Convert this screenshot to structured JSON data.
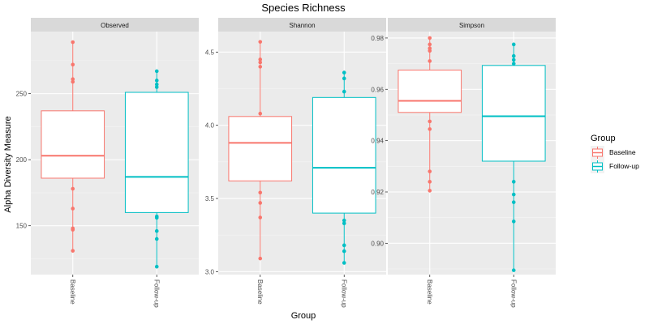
{
  "chart_data": {
    "type": "boxplot",
    "title": "Species Richness",
    "xlabel": "Group",
    "ylabel": "Alpha Diversity Measure",
    "categories": [
      "Baseline",
      "Follow-up"
    ],
    "legend": {
      "title": "Group",
      "placement": "right",
      "entries": [
        {
          "label": "Baseline",
          "color": "#F8766D"
        },
        {
          "label": "Follow-up",
          "color": "#00BFC4"
        }
      ]
    },
    "panels": [
      {
        "name": "Observed",
        "ylim": [
          113,
          297
        ],
        "yticks": [
          150,
          200,
          250
        ],
        "tick_labels": [
          "150",
          "200",
          "250"
        ],
        "boxes": [
          {
            "group": "Baseline",
            "q1": 186,
            "median": 203,
            "q3": 237,
            "whisker_low": 131,
            "whisker_high": 289,
            "points": [
              289,
              272,
              261,
              259,
              178,
              163,
              148,
              147,
              131
            ]
          },
          {
            "group": "Follow-up",
            "q1": 160,
            "median": 187,
            "q3": 251,
            "whisker_low": 119,
            "whisker_high": 267,
            "points": [
              267,
              260,
              257,
              255,
              157,
              156,
              146,
              140,
              119
            ]
          }
        ]
      },
      {
        "name": "Shannon",
        "ylim": [
          2.98,
          4.64
        ],
        "yticks": [
          3.0,
          3.5,
          4.0,
          4.5
        ],
        "tick_labels": [
          "3.0",
          "3.5",
          "4.0",
          "4.5"
        ],
        "boxes": [
          {
            "group": "Baseline",
            "q1": 3.62,
            "median": 3.88,
            "q3": 4.06,
            "whisker_low": 3.09,
            "whisker_high": 4.57,
            "points": [
              4.57,
              4.45,
              4.43,
              4.4,
              4.08,
              3.54,
              3.47,
              3.37,
              3.09
            ]
          },
          {
            "group": "Follow-up",
            "q1": 3.4,
            "median": 3.71,
            "q3": 4.19,
            "whisker_low": 3.06,
            "whisker_high": 4.36,
            "points": [
              4.36,
              4.32,
              4.23,
              3.35,
              3.33,
              3.18,
              3.14,
              3.06
            ]
          }
        ]
      },
      {
        "name": "Simpson",
        "ylim": [
          0.8878,
          0.9825
        ],
        "yticks": [
          0.9,
          0.92,
          0.94,
          0.96,
          0.98
        ],
        "tick_labels": [
          "0.90",
          "0.92",
          "0.94",
          "0.96",
          "0.98"
        ],
        "boxes": [
          {
            "group": "Baseline",
            "q1": 0.951,
            "median": 0.9555,
            "q3": 0.9675,
            "whisker_low": 0.9205,
            "whisker_high": 0.98,
            "points": [
              0.98,
              0.9775,
              0.976,
              0.975,
              0.971,
              0.9475,
              0.9445,
              0.928,
              0.924,
              0.9205
            ]
          },
          {
            "group": "Follow-up",
            "q1": 0.932,
            "median": 0.9495,
            "q3": 0.9693,
            "whisker_low": 0.8895,
            "whisker_high": 0.9775,
            "points": [
              0.9775,
              0.973,
              0.9715,
              0.97,
              0.924,
              0.919,
              0.916,
              0.9085,
              0.8895
            ]
          }
        ]
      }
    ]
  }
}
